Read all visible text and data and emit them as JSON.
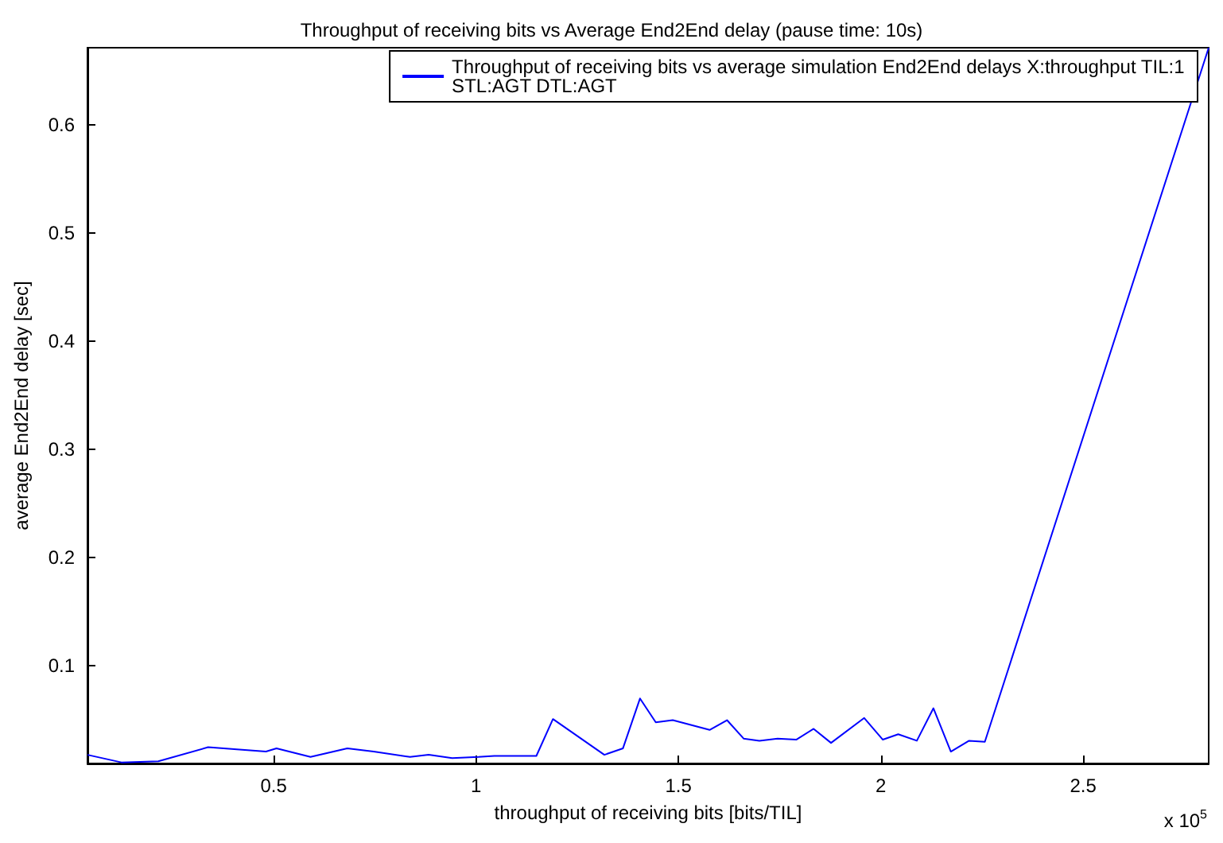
{
  "chart_data": {
    "type": "line",
    "title": "Throughput of receiving bits vs Average End2End delay (pause time: 10s)",
    "xlabel": "throughput of receiving bits [bits/TIL]",
    "ylabel": "average End2End delay [sec]",
    "annotations": [
      "x 10$^{5}$"
    ],
    "x": [
      0.04,
      0.124,
      0.215,
      0.338,
      0.409,
      0.481,
      0.507,
      0.591,
      0.682,
      0.747,
      0.837,
      0.883,
      0.941,
      1.006,
      1.045,
      1.149,
      1.19,
      1.317,
      1.363,
      1.405,
      1.444,
      1.486,
      1.577,
      1.62,
      1.661,
      1.7,
      1.745,
      1.791,
      1.834,
      1.877,
      1.959,
      2.005,
      2.043,
      2.089,
      2.13,
      2.173,
      2.218,
      2.257,
      2.81
    ],
    "series": [
      {
        "name": "Throughput of receiving bits vs average simulation End2End delays X:throughput TIL:1\nSTL:AGT DTL:AGT",
        "color": "#0000ff",
        "values": [
          0.018,
          0.011,
          0.012,
          0.025,
          0.023,
          0.021,
          0.024,
          0.016,
          0.024,
          0.021,
          0.016,
          0.018,
          0.015,
          0.016,
          0.017,
          0.017,
          0.051,
          0.018,
          0.024,
          0.07,
          0.048,
          0.05,
          0.041,
          0.05,
          0.033,
          0.031,
          0.033,
          0.032,
          0.042,
          0.029,
          0.052,
          0.032,
          0.037,
          0.031,
          0.061,
          0.021,
          0.031,
          0.03,
          0.671
        ]
      }
    ],
    "xlim": [
      0.04,
      2.81
    ],
    "ylim": [
      0.01,
      0.671
    ],
    "xticks": [
      0.5,
      1,
      1.5,
      2,
      2.5
    ],
    "yticks": [
      0.1,
      0.2,
      0.3,
      0.4,
      0.5,
      0.6
    ],
    "grid": false,
    "legend": "top right",
    "marker": "none",
    "line_style": "solid"
  }
}
